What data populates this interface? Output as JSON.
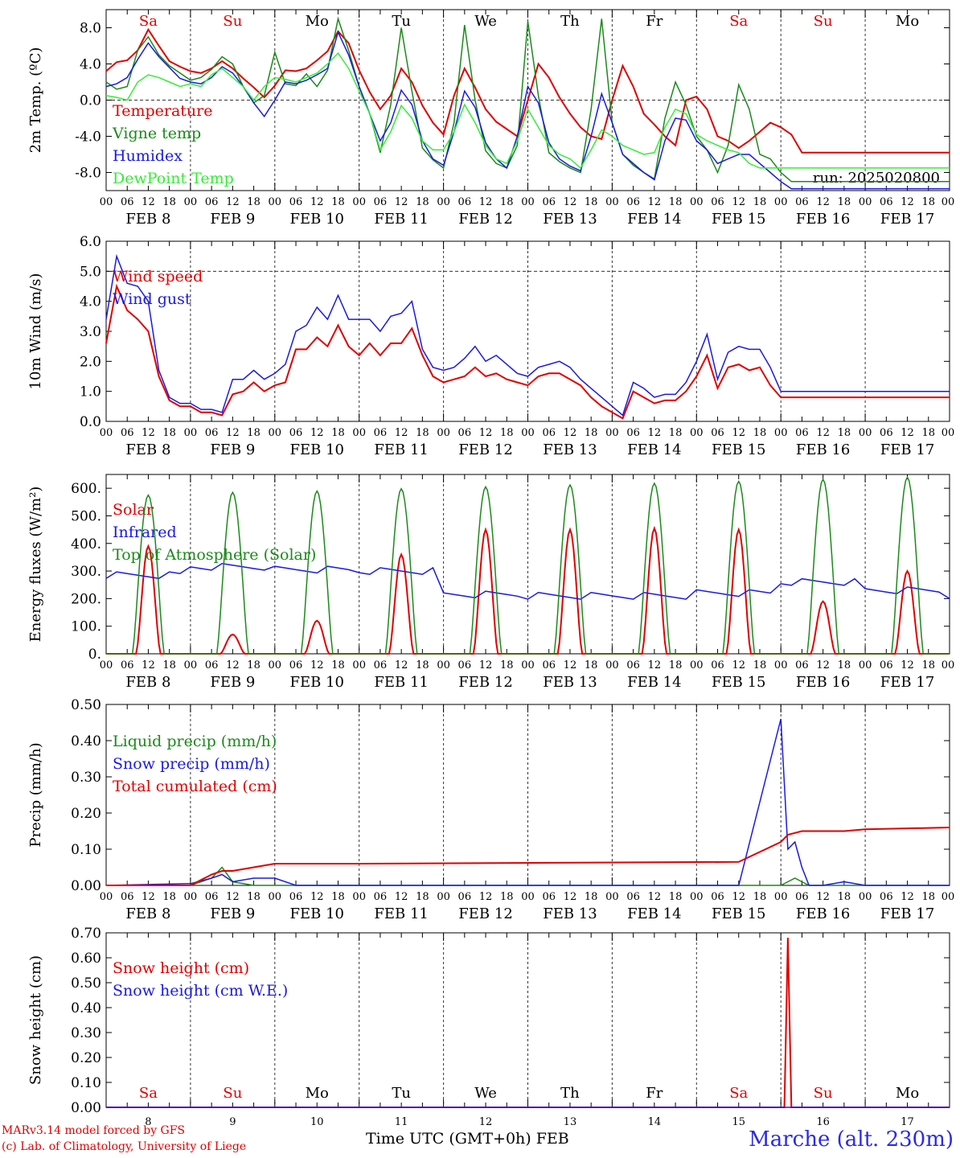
{
  "colors": {
    "red": "#e00000",
    "green": "#1a8a1a",
    "blue": "#1a1ae0",
    "lightgreen": "#33ee33",
    "black": "#000000",
    "grid": "#333333"
  },
  "dates": [
    "FEB 8",
    "FEB 9",
    "FEB 10",
    "FEB 11",
    "FEB 12",
    "FEB 13",
    "FEB 14",
    "FEB 15",
    "FEB 16",
    "FEB 17"
  ],
  "hour_ticks": [
    "00",
    "06",
    "12",
    "18"
  ],
  "last_tick": "00",
  "weekdays": [
    {
      "label": "Sa",
      "weekend": true
    },
    {
      "label": "Su",
      "weekend": true
    },
    {
      "label": "Mo",
      "weekend": false
    },
    {
      "label": "Tu",
      "weekend": false
    },
    {
      "label": "We",
      "weekend": false
    },
    {
      "label": "Th",
      "weekend": false
    },
    {
      "label": "Fr",
      "weekend": false
    },
    {
      "label": "Sa",
      "weekend": true
    },
    {
      "label": "Su",
      "weekend": true
    },
    {
      "label": "Mo",
      "weekend": false
    }
  ],
  "bottom_day_numbers": [
    "8",
    "9",
    "10",
    "11",
    "12",
    "13",
    "14",
    "15",
    "16",
    "17"
  ],
  "footer": {
    "model": "MARv3.14 model forced by GFS",
    "credit": "(c) Lab. of Climatology, University of Liege",
    "time_axis": "Time UTC (GMT+0h) FEB",
    "station": "Marche (alt. 230m)"
  },
  "chart_data": [
    {
      "type": "line",
      "ylabel": "2m Temp. (ºC)",
      "ylim": [
        -10,
        10
      ],
      "yticks": [
        "-8.0",
        "-4.0",
        "0.0",
        "4.0",
        "8.0"
      ],
      "ytick_values": [
        -8,
        -4,
        0,
        4,
        8
      ],
      "ref_lines": [
        0
      ],
      "annotation": "run: 2025020800",
      "x_hours": [
        0,
        3,
        6,
        9,
        12,
        15,
        18,
        21,
        24,
        27,
        30,
        33,
        36,
        39,
        42,
        45,
        48,
        51,
        54,
        57,
        60,
        63,
        66,
        69,
        72,
        75,
        78,
        81,
        84,
        87,
        90,
        93,
        96,
        99,
        102,
        105,
        108,
        111,
        114,
        117,
        120,
        123,
        126,
        129,
        132,
        135,
        138,
        141,
        144,
        147,
        150,
        153,
        156,
        159,
        162,
        165,
        168,
        171,
        174,
        177,
        180,
        183,
        186,
        189,
        192,
        195,
        198,
        201,
        204,
        207,
        210,
        213,
        216,
        219,
        222,
        225,
        228,
        231,
        234,
        237,
        240
      ],
      "series": [
        {
          "name": "Temperature",
          "color": "red",
          "values": [
            3.2,
            4.2,
            4.4,
            5.5,
            7.8,
            6.0,
            4.3,
            3.7,
            3.2,
            3.0,
            3.5,
            4.3,
            3.5,
            2.4,
            1.4,
            0.3,
            1.6,
            3.3,
            3.2,
            3.5,
            4.4,
            5.4,
            7.6,
            6.3,
            3.3,
            0.9,
            -1.0,
            0.5,
            3.5,
            2.0,
            -0.6,
            -2.5,
            -3.8,
            0.5,
            3.5,
            1.4,
            -1.0,
            -2.4,
            -3.2,
            -4.0,
            0.0,
            4.0,
            2.5,
            0.3,
            -1.5,
            -3.0,
            -4.0,
            -4.3,
            0.0,
            3.8,
            1.5,
            -1.5,
            -2.7,
            -4.0,
            -5.0,
            0.0,
            0.4,
            -1.0,
            -4.0,
            -4.5,
            -5.3,
            -4.5,
            -3.5,
            -2.5,
            -3.0,
            -3.8,
            -5.8,
            -5.8,
            -5.8,
            -5.8,
            -5.8,
            -5.8,
            -5.8,
            -5.8,
            -5.8,
            -5.8,
            -5.8,
            -5.8,
            -5.8,
            -5.8,
            -5.8
          ]
        },
        {
          "name": "Vigne temp",
          "color": "green",
          "values": [
            2.0,
            1.2,
            1.5,
            5.5,
            7.0,
            5.0,
            3.8,
            3.0,
            2.2,
            2.5,
            3.4,
            4.8,
            4.0,
            1.5,
            -0.3,
            0.5,
            5.3,
            1.8,
            1.6,
            2.9,
            1.5,
            3.3,
            9.0,
            5.5,
            1.5,
            -1.5,
            -5.8,
            -0.5,
            8.0,
            1.0,
            -5.3,
            -6.6,
            -7.5,
            -2.5,
            8.3,
            0.0,
            -5.6,
            -7.0,
            -7.5,
            -5.0,
            8.7,
            0.5,
            -5.8,
            -6.8,
            -7.5,
            -8.0,
            -1.0,
            9.0,
            -2.5,
            -6.0,
            -7.2,
            -8.0,
            -8.7,
            -2.0,
            2.0,
            -0.5,
            -4.0,
            -5.5,
            -8.0,
            -5.0,
            1.7,
            -1.0,
            -6.0,
            -6.5,
            -8.0,
            -9.0,
            -9.0,
            -9.0,
            -9.0,
            -9.0,
            -9.0,
            -9.0,
            -9.0,
            -9.0,
            -9.0,
            -9.0,
            -9.0,
            -9.0,
            -9.0,
            -9.0,
            -9.0
          ]
        },
        {
          "name": "Humidex",
          "color": "blue",
          "values": [
            1.5,
            1.8,
            2.5,
            4.5,
            6.3,
            4.8,
            3.6,
            2.4,
            2.0,
            1.8,
            2.5,
            3.7,
            3.0,
            1.5,
            -0.3,
            -1.8,
            0.0,
            2.0,
            1.8,
            2.2,
            2.8,
            3.5,
            7.5,
            5.0,
            1.5,
            -1.5,
            -4.5,
            -2.5,
            1.1,
            -0.5,
            -4.5,
            -6.5,
            -7.2,
            -3.5,
            1.0,
            -0.8,
            -4.7,
            -6.5,
            -7.5,
            -4.0,
            1.5,
            -0.3,
            -4.7,
            -6.5,
            -7.3,
            -7.8,
            -4.0,
            0.7,
            -2.5,
            -6.0,
            -7.0,
            -8.0,
            -8.8,
            -4.5,
            -2.0,
            -2.2,
            -4.5,
            -5.5,
            -7.0,
            -6.5,
            -6.0,
            -6.0,
            -7.0,
            -8.0,
            -9.0,
            -9.8,
            -9.8,
            -9.8,
            -9.8,
            -9.8,
            -9.8,
            -9.8,
            -9.8,
            -9.8,
            -9.8,
            -9.8,
            -9.8,
            -9.8,
            -9.8,
            -9.8,
            -9.8
          ]
        },
        {
          "name": "DewPoint Temp",
          "color": "lightgreen",
          "values": [
            0.5,
            0.3,
            0.0,
            2.0,
            2.8,
            2.5,
            2.0,
            1.5,
            1.8,
            1.5,
            2.8,
            3.5,
            2.5,
            1.5,
            0.0,
            1.5,
            2.5,
            2.3,
            2.0,
            2.5,
            3.0,
            4.0,
            5.2,
            3.5,
            1.0,
            -1.5,
            -5.5,
            -3.5,
            -0.6,
            -2.0,
            -4.5,
            -5.5,
            -5.5,
            -3.5,
            -0.5,
            -2.5,
            -5.0,
            -6.5,
            -7.0,
            -4.5,
            -1.0,
            -3.0,
            -5.0,
            -6.0,
            -6.5,
            -7.5,
            -5.5,
            -3.3,
            -4.0,
            -5.0,
            -5.5,
            -6.0,
            -5.8,
            -3.0,
            -1.0,
            -1.5,
            -3.8,
            -4.5,
            -5.0,
            -5.5,
            -5.8,
            -7.0,
            -7.5,
            -7.5,
            -7.5,
            -7.5,
            -7.5,
            -7.5,
            -7.5,
            -7.5,
            -7.5,
            -7.5,
            -7.5,
            -7.5,
            -7.5,
            -7.5,
            -7.5,
            -7.5,
            -7.5,
            -7.5,
            -7.5
          ]
        }
      ]
    },
    {
      "type": "line",
      "ylabel": "10m Wind (m/s)",
      "ylim": [
        0,
        6
      ],
      "yticks": [
        "0.0",
        "1.0",
        "2.0",
        "3.0",
        "4.0",
        "5.0",
        "6.0"
      ],
      "ytick_values": [
        0,
        1,
        2,
        3,
        4,
        5,
        6
      ],
      "ref_lines": [
        5
      ],
      "x_hours": [
        0,
        3,
        6,
        9,
        12,
        15,
        18,
        21,
        24,
        27,
        30,
        33,
        36,
        39,
        42,
        45,
        48,
        51,
        54,
        57,
        60,
        63,
        66,
        69,
        72,
        75,
        78,
        81,
        84,
        87,
        90,
        93,
        96,
        99,
        102,
        105,
        108,
        111,
        114,
        117,
        120,
        123,
        126,
        129,
        132,
        135,
        138,
        141,
        144,
        147,
        150,
        153,
        156,
        159,
        162,
        165,
        168,
        171,
        174,
        177,
        180,
        183,
        186,
        189,
        192,
        195,
        198,
        201,
        204,
        207,
        210,
        213,
        216,
        219,
        222,
        225,
        228,
        231,
        234,
        237,
        240
      ],
      "series": [
        {
          "name": "Wind speed",
          "color": "red",
          "values": [
            2.6,
            4.5,
            3.7,
            3.4,
            3.0,
            1.5,
            0.7,
            0.5,
            0.5,
            0.3,
            0.3,
            0.2,
            0.9,
            1.0,
            1.3,
            1.0,
            1.2,
            1.3,
            2.4,
            2.4,
            2.8,
            2.5,
            3.2,
            2.5,
            2.2,
            2.6,
            2.2,
            2.6,
            2.6,
            3.1,
            2.2,
            1.5,
            1.3,
            1.4,
            1.5,
            1.8,
            1.5,
            1.6,
            1.4,
            1.3,
            1.2,
            1.5,
            1.6,
            1.6,
            1.4,
            1.2,
            0.8,
            0.5,
            0.3,
            0.1,
            1.0,
            0.8,
            0.6,
            0.7,
            0.7,
            1.0,
            1.5,
            2.2,
            1.1,
            1.8,
            1.9,
            1.7,
            1.8,
            1.2,
            0.8,
            0.8,
            0.8,
            0.8,
            0.8,
            0.8,
            0.8,
            0.8,
            0.8,
            0.8,
            0.8,
            0.8,
            0.8,
            0.8,
            0.8,
            0.8,
            0.8
          ]
        },
        {
          "name": "Wind gust",
          "color": "blue",
          "values": [
            3.4,
            5.5,
            4.6,
            4.5,
            4.0,
            1.7,
            0.8,
            0.6,
            0.6,
            0.4,
            0.4,
            0.3,
            1.4,
            1.4,
            1.7,
            1.4,
            1.6,
            1.9,
            3.0,
            3.2,
            3.8,
            3.4,
            4.2,
            3.4,
            3.4,
            3.4,
            3.0,
            3.5,
            3.6,
            4.0,
            2.4,
            1.8,
            1.7,
            1.8,
            2.1,
            2.5,
            2.0,
            2.2,
            1.9,
            1.6,
            1.5,
            1.8,
            1.9,
            2.0,
            1.8,
            1.4,
            1.1,
            0.8,
            0.5,
            0.2,
            1.3,
            1.1,
            0.8,
            0.9,
            0.9,
            1.3,
            2.0,
            2.9,
            1.4,
            2.3,
            2.5,
            2.4,
            2.4,
            1.8,
            1.0,
            1.0,
            1.0,
            1.0,
            1.0,
            1.0,
            1.0,
            1.0,
            1.0,
            1.0,
            1.0,
            1.0,
            1.0,
            1.0,
            1.0,
            1.0,
            1.0
          ]
        }
      ]
    },
    {
      "type": "line",
      "ylabel": "Energy fluxes (W/m²)",
      "ylim": [
        0,
        650
      ],
      "yticks": [
        "0.",
        "100.",
        "200.",
        "300.",
        "400.",
        "500.",
        "600."
      ],
      "ytick_values": [
        0,
        100,
        200,
        300,
        400,
        500,
        600
      ],
      "ref_lines": [],
      "x_hours": [
        0,
        6,
        7,
        8,
        9,
        10,
        11,
        12,
        13,
        14,
        15,
        16,
        17,
        18,
        24
      ],
      "day_curves": true,
      "series": [
        {
          "name": "Solar",
          "color": "red",
          "daily_peaks": [
            390,
            70,
            120,
            360,
            450,
            450,
            455,
            450,
            190,
            300
          ]
        },
        {
          "name": "Infrared",
          "color": "blue",
          "daily_levels": [
            285,
            315,
            305,
            300,
            215,
            210,
            210,
            220,
            260,
            230
          ]
        },
        {
          "name": "Top of Atmosphere (Solar)",
          "color": "green",
          "daily_peaks": [
            575,
            585,
            590,
            598,
            605,
            612,
            618,
            625,
            632,
            640
          ]
        }
      ]
    },
    {
      "type": "line",
      "ylabel": "Precip (mm/h)",
      "ylim": [
        0,
        0.5
      ],
      "yticks": [
        "0.00",
        "0.10",
        "0.20",
        "0.30",
        "0.40",
        "0.50"
      ],
      "ytick_values": [
        0,
        0.1,
        0.2,
        0.3,
        0.4,
        0.5
      ],
      "ref_lines": [],
      "x_hours": [
        0,
        24,
        30,
        33,
        36,
        42,
        48,
        54,
        60,
        66,
        72,
        180,
        192,
        194,
        196,
        198,
        200,
        204,
        210,
        216,
        240
      ],
      "series": [
        {
          "name": "Liquid precip (mm/h)",
          "color": "green",
          "values": [
            0.0,
            0.0,
            0.02,
            0.05,
            0.01,
            0.0,
            0.0,
            0.0,
            0.0,
            0.0,
            0.0,
            0.0,
            0.0,
            0.01,
            0.02,
            0.01,
            0.0,
            0.0,
            0.0,
            0.0,
            0.0
          ]
        },
        {
          "name": "Snow precip (mm/h)",
          "color": "blue",
          "values": [
            0.0,
            0.005,
            0.02,
            0.03,
            0.01,
            0.02,
            0.02,
            0.0,
            0.0,
            0.0,
            0.0,
            0.0,
            0.46,
            0.1,
            0.12,
            0.05,
            0.0,
            0.0,
            0.01,
            0.0,
            0.0
          ]
        },
        {
          "name": "Total cumulated (cm)",
          "color": "red",
          "values": [
            0.0,
            0.0,
            0.03,
            0.04,
            0.04,
            0.05,
            0.06,
            0.06,
            0.06,
            0.06,
            0.06,
            0.065,
            0.12,
            0.14,
            0.145,
            0.15,
            0.15,
            0.15,
            0.15,
            0.155,
            0.16
          ]
        }
      ]
    },
    {
      "type": "line",
      "ylabel": "Snow height (cm)",
      "ylim": [
        0,
        0.7
      ],
      "yticks": [
        "0.00",
        "0.10",
        "0.20",
        "0.30",
        "0.40",
        "0.50",
        "0.60",
        "0.70"
      ],
      "ytick_values": [
        0,
        0.1,
        0.2,
        0.3,
        0.4,
        0.5,
        0.6,
        0.7
      ],
      "ref_lines": [],
      "x_hours": [
        0,
        192,
        193,
        194,
        195,
        196,
        240
      ],
      "series": [
        {
          "name": "Snow height (cm)",
          "color": "red",
          "values": [
            0.0,
            0.0,
            0.0,
            0.68,
            0.0,
            0.0,
            0.0
          ]
        },
        {
          "name": "Snow height (cm W.E.)",
          "color": "blue",
          "values": [
            0.0,
            0.0,
            0.0,
            0.0,
            0.0,
            0.0,
            0.0
          ]
        }
      ]
    }
  ]
}
